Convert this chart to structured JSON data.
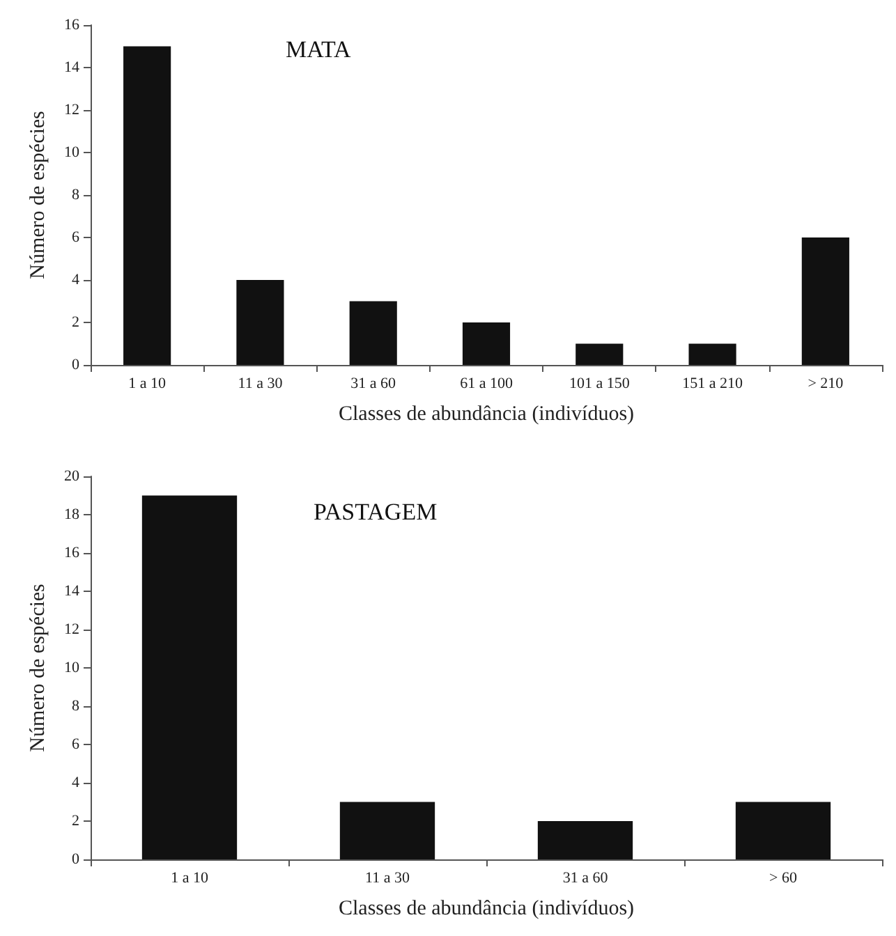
{
  "chart_data": [
    {
      "type": "bar",
      "title": "MATA",
      "xlabel": "Classes de abundância (indivíduos)",
      "ylabel": "Número de espécies",
      "categories": [
        "1 a 10",
        "11 a 30",
        "31 a 60",
        "61 a 100",
        "101 a 150",
        "151 a 210",
        "> 210"
      ],
      "values": [
        15,
        4,
        3,
        2,
        1,
        1,
        6
      ],
      "color": "#111111",
      "ylim": [
        0,
        16
      ],
      "yticks": [
        0,
        2,
        4,
        6,
        8,
        10,
        12,
        14,
        16
      ],
      "grid": false
    },
    {
      "type": "bar",
      "title": "PASTAGEM",
      "xlabel": "Classes de abundância (indivíduos)",
      "ylabel": "Número de espécies",
      "categories": [
        "1 a 10",
        "11 a 30",
        "31 a 60",
        "> 60"
      ],
      "values": [
        19,
        3,
        2,
        3
      ],
      "color": "#111111",
      "ylim": [
        0,
        20
      ],
      "yticks": [
        0,
        2,
        4,
        6,
        8,
        10,
        12,
        14,
        16,
        18,
        20
      ],
      "grid": false
    }
  ]
}
